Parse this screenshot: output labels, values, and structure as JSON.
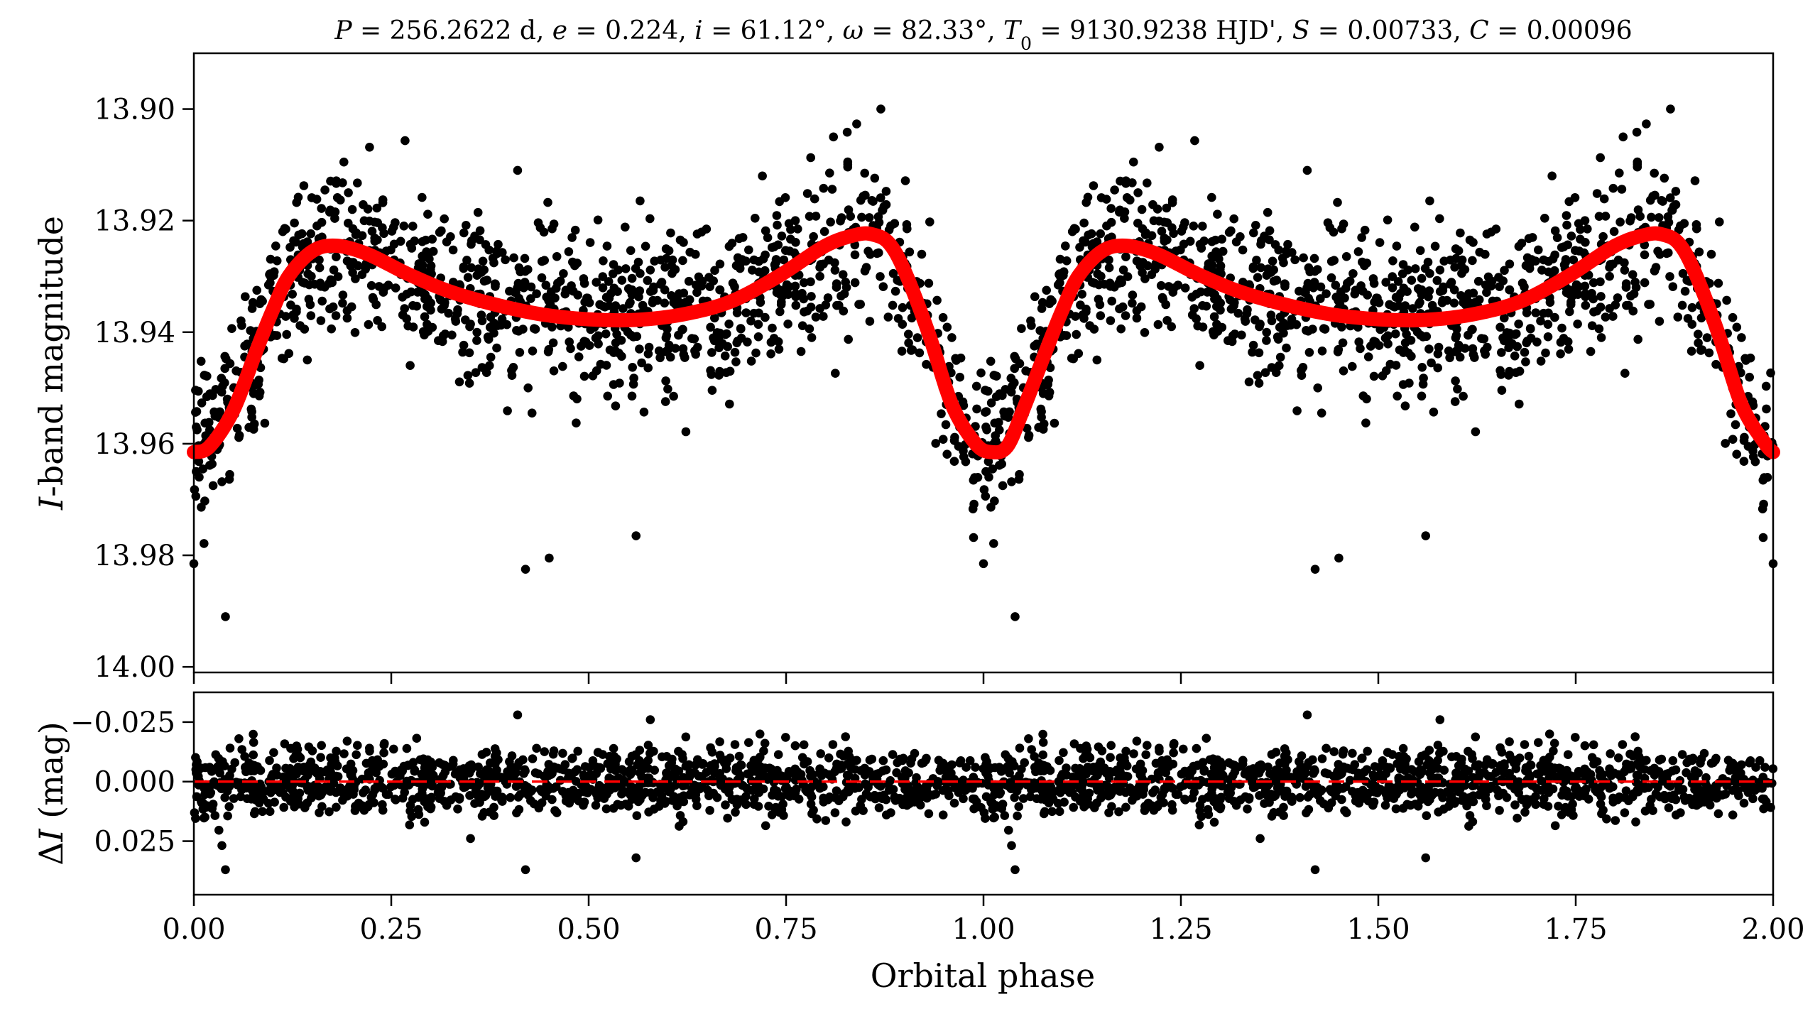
{
  "figure": {
    "title": "P = 256.2622 d, e = 0.224, i = 61.12°, ω = 82.33°, T₀ = 9130.9238 HJD', S = 0.00733, C = 0.00096",
    "title_parts": [
      {
        "t": "P",
        "i": true
      },
      {
        "t": " = 256.2622 d, "
      },
      {
        "t": "e",
        "i": true
      },
      {
        "t": " = 0.224, "
      },
      {
        "t": "i",
        "i": true
      },
      {
        "t": " = 61.12°, "
      },
      {
        "t": "ω",
        "i": true
      },
      {
        "t": " = 82.33°, "
      },
      {
        "t": "T",
        "i": true
      },
      {
        "t": "0",
        "sub": true
      },
      {
        "t": " = 9130.9238 HJD', "
      },
      {
        "t": "S",
        "i": true
      },
      {
        "t": " = 0.00733, "
      },
      {
        "t": "C",
        "i": true
      },
      {
        "t": " = 0.00096"
      }
    ],
    "colors": {
      "data": "#000000",
      "model": "#ff0000",
      "zero_line": "#ff0000",
      "axes": "#000000"
    }
  },
  "chart_data": [
    {
      "type": "scatter",
      "panel": "top",
      "ylabel_parts": [
        {
          "t": "I",
          "i": true
        },
        {
          "t": "-band magnitude"
        }
      ],
      "ylabel": "I-band magnitude",
      "xlim": [
        0,
        2
      ],
      "ylim": [
        14.001,
        13.89
      ],
      "y_inverted": true,
      "yticks": [
        13.9,
        13.92,
        13.94,
        13.96,
        13.98,
        14.0
      ],
      "ytick_labels": [
        "13.90",
        "13.92",
        "13.94",
        "13.96",
        "13.98",
        "14.00"
      ],
      "model": {
        "x": [
          0,
          0.02,
          0.05,
          0.08,
          0.1,
          0.12,
          0.15,
          0.18,
          0.22,
          0.27,
          0.32,
          0.38,
          0.44,
          0.5,
          0.56,
          0.62,
          0.68,
          0.74,
          0.8,
          0.84,
          0.86,
          0.88,
          0.9,
          0.93,
          0.96,
          0.99,
          1.01,
          1.03,
          1.05,
          1.08,
          1.1,
          1.12,
          1.15,
          1.18,
          1.22,
          1.27,
          1.32,
          1.38,
          1.44,
          1.5,
          1.56,
          1.62,
          1.68,
          1.74,
          1.8,
          1.84,
          1.86,
          1.88,
          1.9,
          1.93,
          1.96,
          1.99,
          2.0
        ],
        "y": [
          13.9615,
          13.9605,
          13.954,
          13.943,
          13.936,
          13.93,
          13.9255,
          13.9245,
          13.926,
          13.9295,
          13.9325,
          13.935,
          13.9368,
          13.9377,
          13.9378,
          13.9368,
          13.9345,
          13.93,
          13.9245,
          13.9225,
          13.9225,
          13.924,
          13.929,
          13.94,
          13.953,
          13.96,
          13.9615,
          13.9605,
          13.954,
          13.943,
          13.936,
          13.93,
          13.9255,
          13.9245,
          13.926,
          13.9295,
          13.9325,
          13.935,
          13.9368,
          13.9377,
          13.9378,
          13.9368,
          13.9345,
          13.93,
          13.9245,
          13.9225,
          13.9225,
          13.924,
          13.929,
          13.94,
          13.953,
          13.96,
          13.9615
        ]
      },
      "scatter_sigma": 0.0072,
      "n_points_per_cycle": 1150,
      "notable_points": [
        {
          "x": 0.87,
          "y": 13.9
        },
        {
          "x": 1.87,
          "y": 13.9
        },
        {
          "x": 0.81,
          "y": 13.905
        },
        {
          "x": 1.81,
          "y": 13.905
        },
        {
          "x": 0.04,
          "y": 13.991
        },
        {
          "x": 1.04,
          "y": 13.991
        },
        {
          "x": 0.42,
          "y": 13.9825
        },
        {
          "x": 1.42,
          "y": 13.9825
        },
        {
          "x": 0.45,
          "y": 13.9805
        },
        {
          "x": 1.45,
          "y": 13.9805
        },
        {
          "x": 0.56,
          "y": 13.9765
        },
        {
          "x": 1.56,
          "y": 13.9765
        },
        {
          "x": 0.41,
          "y": 13.911
        },
        {
          "x": 1.41,
          "y": 13.911
        },
        {
          "x": 0.19,
          "y": 13.9095
        },
        {
          "x": 1.19,
          "y": 13.9095
        },
        {
          "x": 0.72,
          "y": 13.912
        },
        {
          "x": 1.72,
          "y": 13.912
        },
        {
          "x": 0.0,
          "y": 13.9815
        },
        {
          "x": 1.0,
          "y": 13.9815
        },
        {
          "x": 2.0,
          "y": 13.9815
        }
      ]
    },
    {
      "type": "scatter",
      "panel": "bottom",
      "ylabel_parts": [
        {
          "t": "Δ"
        },
        {
          "t": "I",
          "i": true
        },
        {
          "t": " (mag)"
        }
      ],
      "ylabel": "ΔI (mag)",
      "xlabel": "Orbital phase",
      "xlim": [
        0,
        2
      ],
      "ylim": [
        0.0475,
        -0.0375
      ],
      "y_inverted": true,
      "xticks": [
        0,
        0.25,
        0.5,
        0.75,
        1.0,
        1.25,
        1.5,
        1.75,
        2.0
      ],
      "xtick_labels": [
        "0.00",
        "0.25",
        "0.50",
        "0.75",
        "1.00",
        "1.25",
        "1.50",
        "1.75",
        "2.00"
      ],
      "yticks": [
        -0.025,
        0.0,
        0.025
      ],
      "ytick_labels": [
        "−0.025",
        "0.000",
        "0.025"
      ],
      "zero_line": 0,
      "residual_sigma": 0.0072,
      "notable_points": [
        {
          "x": 0.41,
          "y": -0.028
        },
        {
          "x": 1.41,
          "y": -0.028
        },
        {
          "x": 0.04,
          "y": 0.037
        },
        {
          "x": 1.04,
          "y": 0.037
        },
        {
          "x": 0.42,
          "y": 0.037
        },
        {
          "x": 1.42,
          "y": 0.037
        },
        {
          "x": 0.56,
          "y": 0.032
        },
        {
          "x": 1.56,
          "y": 0.032
        }
      ]
    }
  ]
}
